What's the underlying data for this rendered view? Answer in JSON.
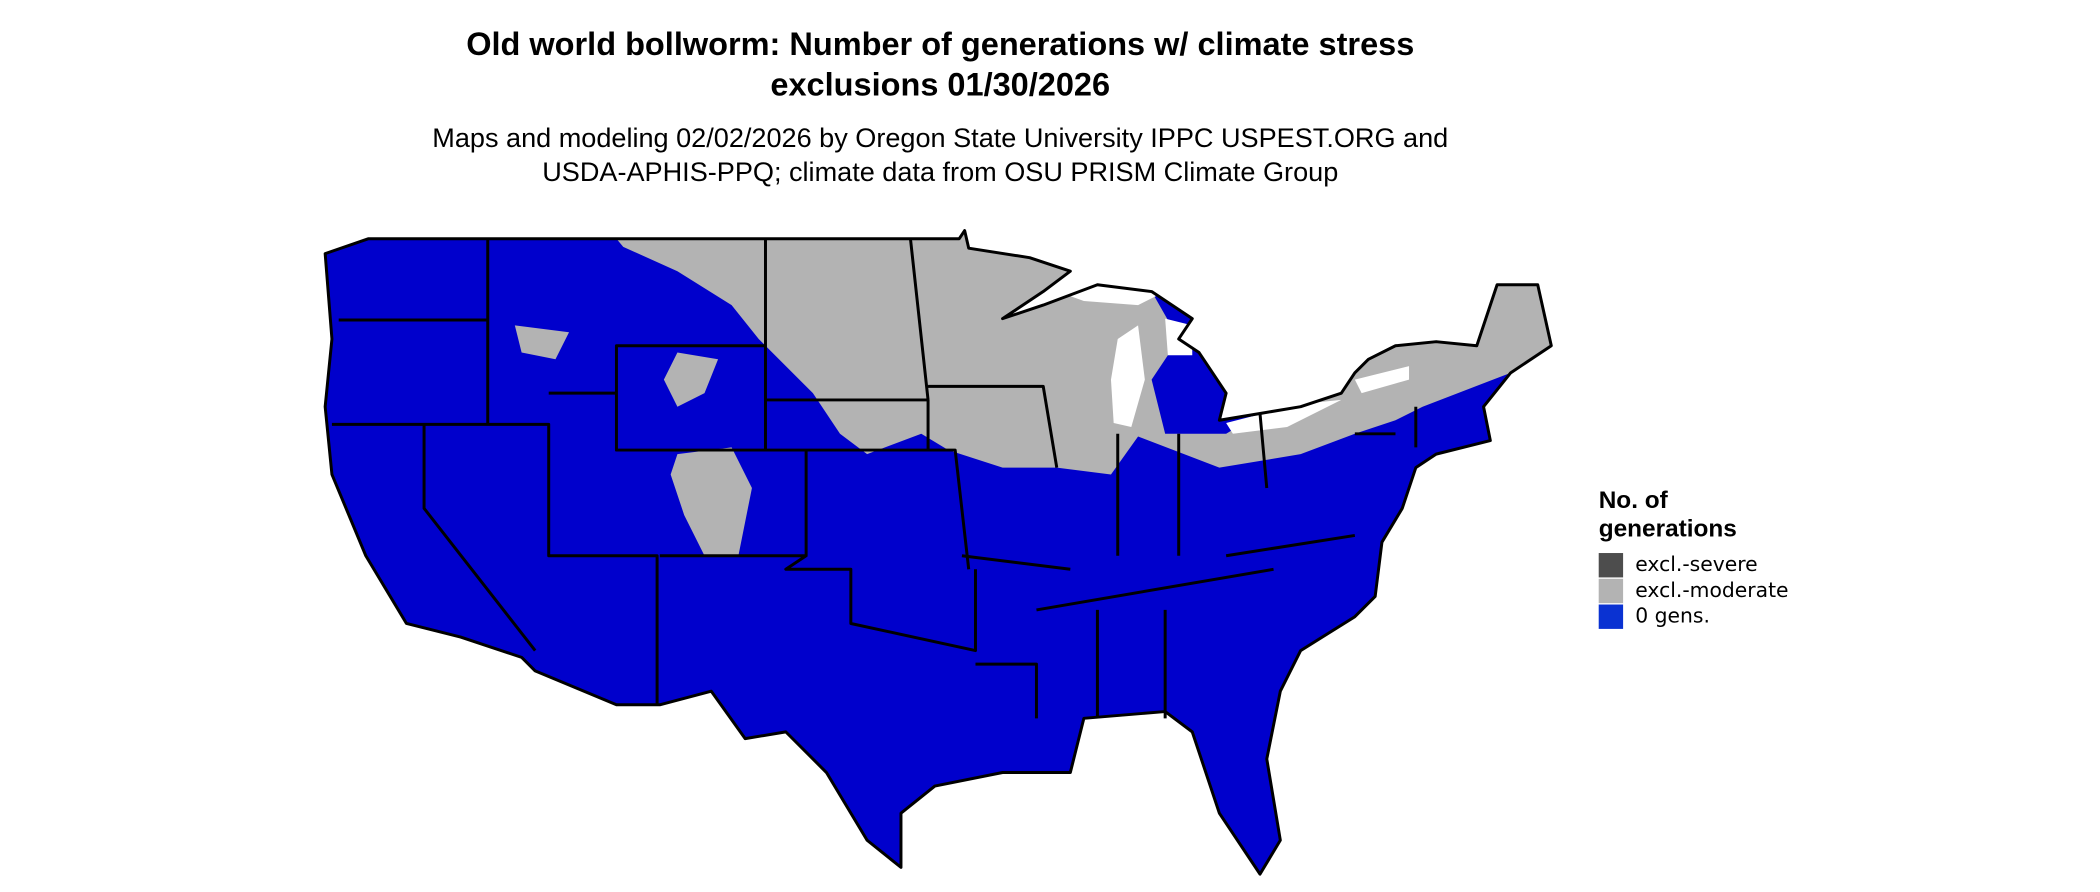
{
  "title": [
    "Old world bollworm: Number of generations w/ climate stress",
    "exclusions 01/30/2026"
  ],
  "subtitle": [
    "Maps and modeling 02/02/2026 by Oregon State University IPPC USPEST.ORG and",
    "USDA-APHIS-PPQ; climate data from OSU PRISM Climate Group"
  ],
  "legend": {
    "title": [
      "No. of",
      "generations"
    ],
    "items": [
      {
        "label": "excl.-severe",
        "color": "#4d4d4d"
      },
      {
        "label": "excl.-moderate",
        "color": "#b3b3b3"
      },
      {
        "label": "0 gens.",
        "color": "#0a32d2"
      }
    ]
  }
}
